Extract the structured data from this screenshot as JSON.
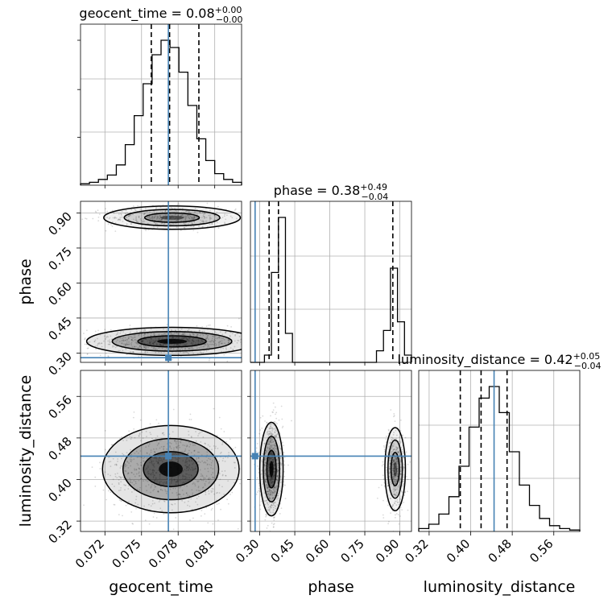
{
  "chart_data": {
    "type": "corner",
    "grid": true,
    "truth_color": "#4682b4",
    "parameters": [
      {
        "name": "geocent_time",
        "axis_label": "geocent_time",
        "range": [
          0.07,
          0.0832
        ],
        "ticks": [
          0.072,
          0.075,
          0.078,
          0.081
        ],
        "tick_labels": [
          "0.072",
          "0.075",
          "0.078",
          "0.081"
        ],
        "title_main": "geocent_time = 0.08",
        "title_upper": "+0.00",
        "title_lower": "−0.00",
        "truth": 0.0772,
        "quantiles": [
          0.0758,
          0.0773,
          0.0797
        ],
        "hist_values": [
          1,
          2,
          4,
          7,
          14,
          28,
          48,
          70,
          90,
          100,
          95,
          78,
          55,
          32,
          17,
          8,
          4,
          2
        ]
      },
      {
        "name": "phase",
        "axis_label": "phase",
        "range": [
          0.26,
          0.95
        ],
        "ticks": [
          0.3,
          0.45,
          0.6,
          0.75,
          0.9
        ],
        "tick_labels": [
          "0.30",
          "0.45",
          "0.60",
          "0.75",
          "0.90"
        ],
        "title_main": "phase = 0.38",
        "title_upper": "+0.49",
        "title_lower": "−0.04",
        "truth": 0.28,
        "quantiles": [
          0.34,
          0.38,
          0.87
        ],
        "hist_values": [
          0,
          0,
          5,
          62,
          100,
          20,
          0,
          0,
          0,
          0,
          0,
          0,
          0,
          0,
          0,
          0,
          0,
          0,
          8,
          22,
          65,
          28,
          5
        ]
      },
      {
        "name": "luminosity_distance",
        "axis_label": "luminosity_distance",
        "range": [
          0.3,
          0.61
        ],
        "ticks": [
          0.32,
          0.4,
          0.48,
          0.56
        ],
        "tick_labels": [
          "0.32",
          "0.40",
          "0.48",
          "0.56"
        ],
        "title_main": "luminosity_distance = 0.42",
        "title_upper": "+0.05",
        "title_lower": "−0.04",
        "truth": 0.445,
        "quantiles": [
          0.38,
          0.42,
          0.47
        ],
        "hist_values": [
          2,
          5,
          12,
          24,
          45,
          72,
          92,
          100,
          82,
          55,
          32,
          18,
          9,
          4,
          2,
          1
        ]
      }
    ],
    "pairs": [
      {
        "x": "geocent_time",
        "y": "phase",
        "modes": [
          {
            "cx": 0.0775,
            "cy": 0.35,
            "rx": 0.0035,
            "ry": 0.03,
            "weight": 1.0
          },
          {
            "cx": 0.0775,
            "cy": 0.88,
            "rx": 0.0028,
            "ry": 0.025,
            "weight": 0.55
          }
        ]
      },
      {
        "x": "geocent_time",
        "y": "luminosity_distance",
        "modes": [
          {
            "cx": 0.0774,
            "cy": 0.42,
            "rx": 0.0028,
            "ry": 0.042,
            "weight": 1.0
          }
        ]
      },
      {
        "x": "phase",
        "y": "luminosity_distance",
        "modes": [
          {
            "cx": 0.35,
            "cy": 0.42,
            "rx": 0.025,
            "ry": 0.045,
            "weight": 1.0
          },
          {
            "cx": 0.88,
            "cy": 0.42,
            "rx": 0.022,
            "ry": 0.04,
            "weight": 0.55
          }
        ]
      }
    ]
  }
}
